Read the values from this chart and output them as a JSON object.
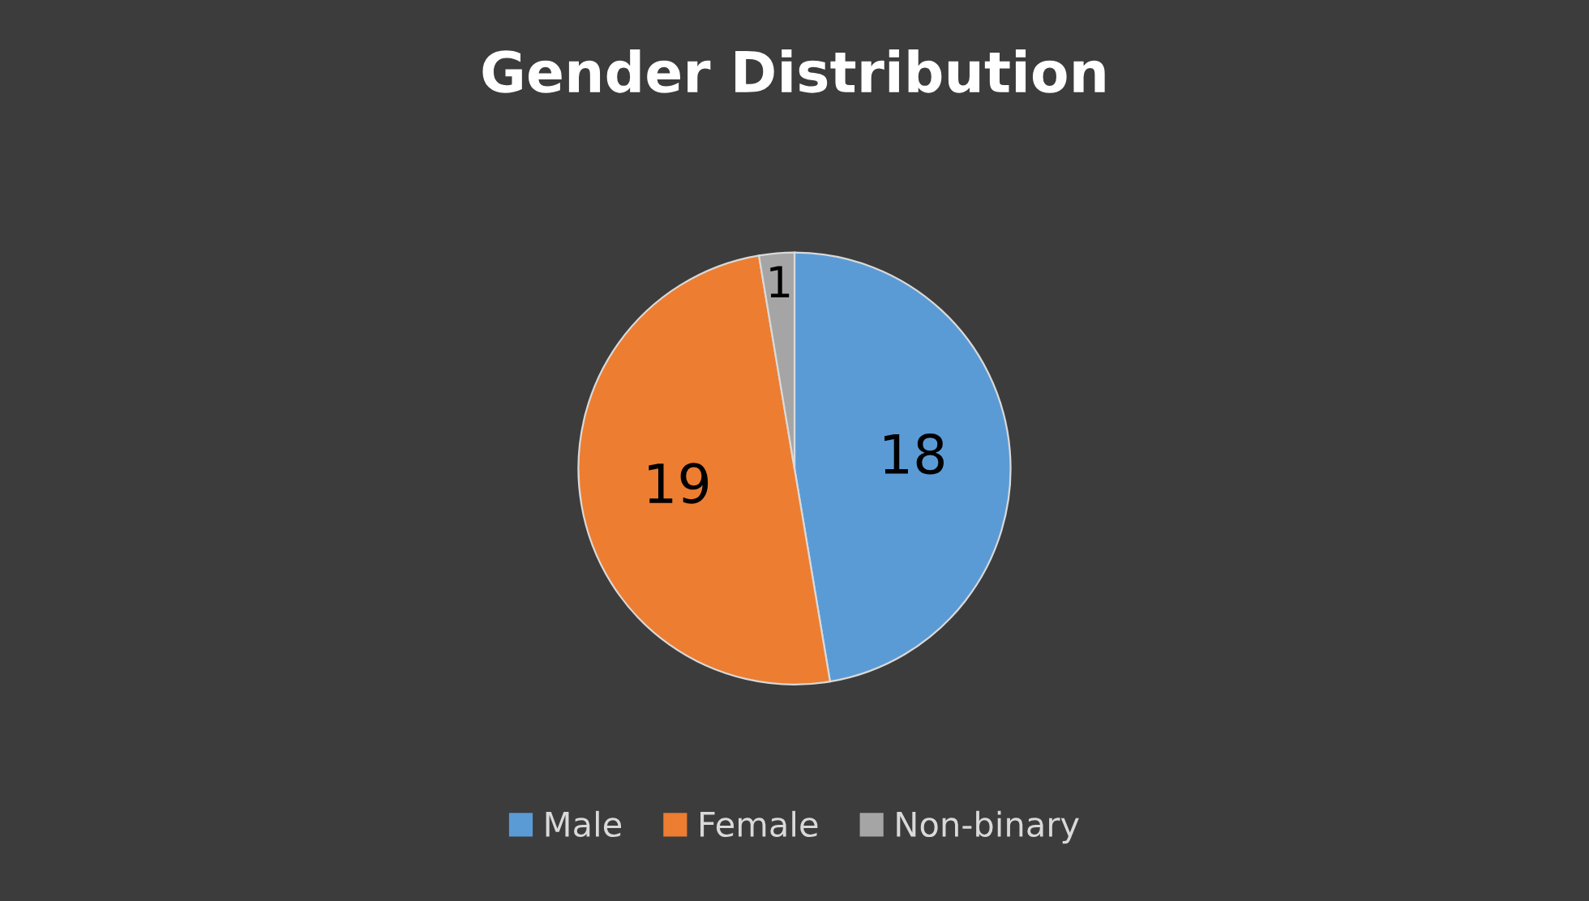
{
  "chart_data": {
    "type": "pie",
    "title": "Gender Distribution",
    "categories": [
      "Male",
      "Female",
      "Non-binary"
    ],
    "values": [
      18,
      19,
      1
    ],
    "colors": [
      "#5b9bd5",
      "#ed7d31",
      "#a5a5a5"
    ],
    "data_labels": true,
    "legend": "bottom"
  }
}
